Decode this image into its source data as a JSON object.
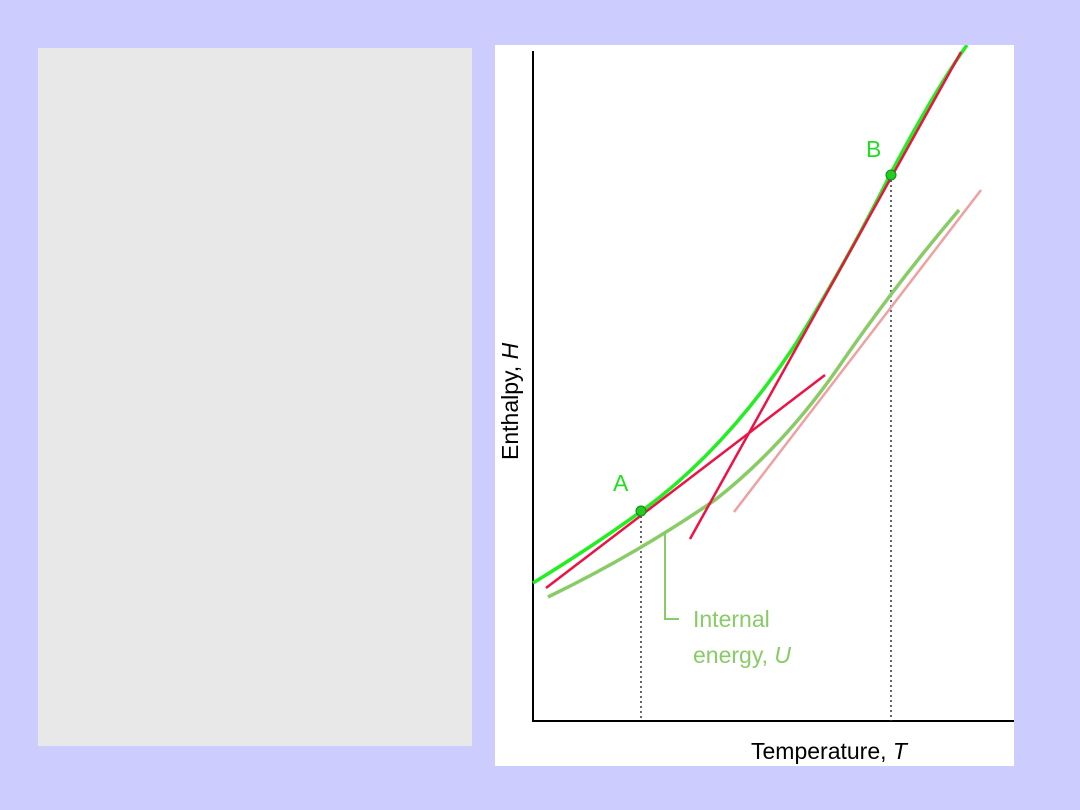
{
  "figure": {
    "y_axis_label": "Enthalpy,",
    "y_axis_symbol": "H",
    "x_axis_label": "Temperature,",
    "x_axis_symbol": "T",
    "point_a_label": "A",
    "point_b_label": "B",
    "u_label_line1": "Internal",
    "u_label_line2_text": "energy,",
    "u_label_line2_symbol": "U"
  },
  "colors": {
    "page_background": "#ccccff",
    "left_panel": "#e8e8e8",
    "figure_background": "#ffffff",
    "enthalpy_curve": "#22ee22",
    "tangent_lines": "#ee1144",
    "internal_energy_curve": "#88cc66",
    "internal_energy_tangent": "#f0a0a0",
    "axes": "#000000",
    "point_labels": "#22dd22",
    "u_label": "#88cc66"
  }
}
